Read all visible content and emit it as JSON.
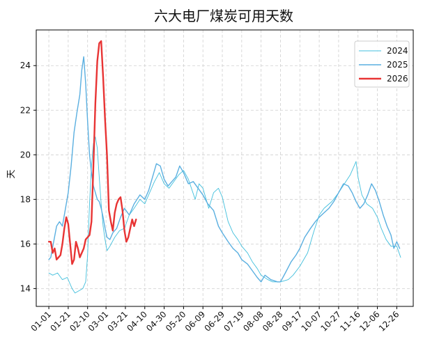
{
  "chart_data": {
    "type": "line",
    "title": "六大电厂煤炭可用天数",
    "xlabel": "",
    "ylabel": "天",
    "ylim": [
      13.2,
      25.6
    ],
    "xlim": [
      "2025-12-19",
      "2027-01-12"
    ],
    "y_ticks": [
      14,
      16,
      18,
      20,
      22,
      24
    ],
    "x_ticks": [
      "01-01",
      "01-21",
      "02-10",
      "03-01",
      "03-21",
      "04-10",
      "04-30",
      "05-20",
      "06-09",
      "06-29",
      "07-19",
      "08-08",
      "08-28",
      "09-17",
      "10-07",
      "10-27",
      "11-16",
      "12-06",
      "12-26"
    ],
    "grid": true,
    "legend_position": "top-right",
    "series": [
      {
        "name": "2024",
        "color": "#41bfdc",
        "line_width": 0.9,
        "points": [
          [
            "01-01",
            14.7
          ],
          [
            "01-05",
            14.6
          ],
          [
            "01-10",
            14.7
          ],
          [
            "01-15",
            14.4
          ],
          [
            "01-20",
            14.5
          ],
          [
            "01-25",
            14.0
          ],
          [
            "01-28",
            13.8
          ],
          [
            "02-01",
            13.9
          ],
          [
            "02-05",
            14.0
          ],
          [
            "02-08",
            14.3
          ],
          [
            "02-10",
            15.5
          ],
          [
            "02-12",
            17.8
          ],
          [
            "02-14",
            19.5
          ],
          [
            "02-16",
            20.5
          ],
          [
            "02-18",
            20.8
          ],
          [
            "02-20",
            20.3
          ],
          [
            "02-22",
            19.0
          ],
          [
            "02-24",
            17.8
          ],
          [
            "02-26",
            16.8
          ],
          [
            "02-28",
            16.2
          ],
          [
            "03-02",
            15.7
          ],
          [
            "03-05",
            15.9
          ],
          [
            "03-10",
            16.3
          ],
          [
            "03-15",
            16.6
          ],
          [
            "03-20",
            16.7
          ],
          [
            "03-25",
            17.3
          ],
          [
            "03-30",
            17.6
          ],
          [
            "04-05",
            18.0
          ],
          [
            "04-10",
            17.8
          ],
          [
            "04-15",
            18.3
          ],
          [
            "04-20",
            18.8
          ],
          [
            "04-25",
            19.2
          ],
          [
            "04-30",
            18.7
          ],
          [
            "05-05",
            18.5
          ],
          [
            "05-10",
            18.8
          ],
          [
            "05-15",
            19.1
          ],
          [
            "05-20",
            19.3
          ],
          [
            "05-25",
            18.9
          ],
          [
            "06-01",
            18.0
          ],
          [
            "06-05",
            18.7
          ],
          [
            "06-09",
            18.5
          ],
          [
            "06-15",
            17.6
          ],
          [
            "06-20",
            18.3
          ],
          [
            "06-25",
            18.5
          ],
          [
            "06-29",
            18.1
          ],
          [
            "07-05",
            17.0
          ],
          [
            "07-10",
            16.5
          ],
          [
            "07-15",
            16.2
          ],
          [
            "07-19",
            15.9
          ],
          [
            "07-25",
            15.6
          ],
          [
            "07-30",
            15.2
          ],
          [
            "08-04",
            14.9
          ],
          [
            "08-08",
            14.6
          ],
          [
            "08-15",
            14.4
          ],
          [
            "08-20",
            14.3
          ],
          [
            "08-28",
            14.3
          ],
          [
            "09-05",
            14.4
          ],
          [
            "09-10",
            14.6
          ],
          [
            "09-17",
            15.0
          ],
          [
            "09-25",
            15.6
          ],
          [
            "10-01",
            16.5
          ],
          [
            "10-07",
            17.3
          ],
          [
            "10-12",
            17.6
          ],
          [
            "10-20",
            17.9
          ],
          [
            "10-27",
            18.3
          ],
          [
            "11-02",
            18.7
          ],
          [
            "11-08",
            19.1
          ],
          [
            "11-12",
            19.5
          ],
          [
            "11-14",
            19.7
          ],
          [
            "11-16",
            19.0
          ],
          [
            "11-20",
            18.2
          ],
          [
            "11-25",
            17.8
          ],
          [
            "12-01",
            17.6
          ],
          [
            "12-06",
            17.2
          ],
          [
            "12-10",
            16.7
          ],
          [
            "12-15",
            16.2
          ],
          [
            "12-20",
            15.9
          ],
          [
            "12-26",
            15.9
          ],
          [
            "12-30",
            15.4
          ]
        ]
      },
      {
        "name": "2025",
        "color": "#5aafe0",
        "line_width": 1.4,
        "points": [
          [
            "01-01",
            15.3
          ],
          [
            "01-03",
            15.4
          ],
          [
            "01-06",
            16.1
          ],
          [
            "01-09",
            16.8
          ],
          [
            "01-12",
            17.0
          ],
          [
            "01-15",
            16.8
          ],
          [
            "01-17",
            17.3
          ],
          [
            "01-19",
            17.8
          ],
          [
            "01-21",
            18.3
          ],
          [
            "01-24",
            19.5
          ],
          [
            "01-27",
            21.0
          ],
          [
            "01-30",
            21.9
          ],
          [
            "02-02",
            22.7
          ],
          [
            "02-04",
            23.8
          ],
          [
            "02-06",
            24.4
          ],
          [
            "02-08",
            23.2
          ],
          [
            "02-10",
            21.5
          ],
          [
            "02-12",
            20.0
          ],
          [
            "02-14",
            19.2
          ],
          [
            "02-16",
            18.6
          ],
          [
            "02-18",
            18.3
          ],
          [
            "02-20",
            18.0
          ],
          [
            "02-22",
            17.9
          ],
          [
            "02-24",
            17.6
          ],
          [
            "02-26",
            17.2
          ],
          [
            "02-28",
            16.7
          ],
          [
            "03-02",
            16.3
          ],
          [
            "03-05",
            16.2
          ],
          [
            "03-08",
            16.5
          ],
          [
            "03-12",
            16.7
          ],
          [
            "03-16",
            17.2
          ],
          [
            "03-20",
            17.6
          ],
          [
            "03-25",
            17.3
          ],
          [
            "03-30",
            17.8
          ],
          [
            "04-05",
            18.2
          ],
          [
            "04-10",
            18.0
          ],
          [
            "04-14",
            18.4
          ],
          [
            "04-18",
            19.0
          ],
          [
            "04-22",
            19.6
          ],
          [
            "04-26",
            19.5
          ],
          [
            "04-30",
            18.9
          ],
          [
            "05-04",
            18.6
          ],
          [
            "05-08",
            18.8
          ],
          [
            "05-12",
            19.0
          ],
          [
            "05-16",
            19.5
          ],
          [
            "05-20",
            19.2
          ],
          [
            "05-25",
            18.7
          ],
          [
            "05-30",
            18.8
          ],
          [
            "06-04",
            18.5
          ],
          [
            "06-09",
            18.2
          ],
          [
            "06-14",
            17.8
          ],
          [
            "06-20",
            17.5
          ],
          [
            "06-25",
            16.8
          ],
          [
            "06-29",
            16.5
          ],
          [
            "07-05",
            16.1
          ],
          [
            "07-10",
            15.8
          ],
          [
            "07-15",
            15.6
          ],
          [
            "07-19",
            15.3
          ],
          [
            "07-25",
            15.1
          ],
          [
            "07-30",
            14.8
          ],
          [
            "08-04",
            14.5
          ],
          [
            "08-08",
            14.3
          ],
          [
            "08-12",
            14.6
          ],
          [
            "08-18",
            14.4
          ],
          [
            "08-25",
            14.3
          ],
          [
            "08-28",
            14.3
          ],
          [
            "09-02",
            14.7
          ],
          [
            "09-08",
            15.2
          ],
          [
            "09-13",
            15.5
          ],
          [
            "09-17",
            15.8
          ],
          [
            "09-22",
            16.3
          ],
          [
            "09-28",
            16.7
          ],
          [
            "10-03",
            17.0
          ],
          [
            "10-07",
            17.2
          ],
          [
            "10-12",
            17.4
          ],
          [
            "10-17",
            17.6
          ],
          [
            "10-22",
            17.9
          ],
          [
            "10-27",
            18.3
          ],
          [
            "11-01",
            18.7
          ],
          [
            "11-06",
            18.6
          ],
          [
            "11-10",
            18.3
          ],
          [
            "11-14",
            17.9
          ],
          [
            "11-18",
            17.6
          ],
          [
            "11-22",
            17.8
          ],
          [
            "11-26",
            18.2
          ],
          [
            "11-30",
            18.7
          ],
          [
            "12-04",
            18.4
          ],
          [
            "12-08",
            17.9
          ],
          [
            "12-12",
            17.3
          ],
          [
            "12-16",
            16.8
          ],
          [
            "12-20",
            16.4
          ],
          [
            "12-23",
            15.8
          ],
          [
            "12-26",
            16.1
          ],
          [
            "12-29",
            15.8
          ]
        ]
      },
      {
        "name": "2026",
        "color": "#e83434",
        "line_width": 2.4,
        "points": [
          [
            "01-01",
            16.1
          ],
          [
            "01-03",
            16.1
          ],
          [
            "01-05",
            15.6
          ],
          [
            "01-07",
            15.8
          ],
          [
            "01-09",
            15.3
          ],
          [
            "01-11",
            15.4
          ],
          [
            "01-13",
            15.5
          ],
          [
            "01-15",
            16.0
          ],
          [
            "01-17",
            16.7
          ],
          [
            "01-19",
            17.2
          ],
          [
            "01-21",
            16.9
          ],
          [
            "01-23",
            16.0
          ],
          [
            "01-25",
            15.1
          ],
          [
            "01-27",
            15.3
          ],
          [
            "01-29",
            16.1
          ],
          [
            "01-31",
            15.8
          ],
          [
            "02-02",
            15.4
          ],
          [
            "02-04",
            15.6
          ],
          [
            "02-06",
            15.8
          ],
          [
            "02-08",
            16.2
          ],
          [
            "02-10",
            16.3
          ],
          [
            "02-12",
            16.4
          ],
          [
            "02-14",
            17.0
          ],
          [
            "02-16",
            19.5
          ],
          [
            "02-18",
            22.3
          ],
          [
            "02-20",
            24.2
          ],
          [
            "02-22",
            25.0
          ],
          [
            "02-24",
            25.1
          ],
          [
            "02-26",
            23.5
          ],
          [
            "02-28",
            21.6
          ],
          [
            "03-02",
            20.0
          ],
          [
            "03-04",
            17.5
          ],
          [
            "03-06",
            17.0
          ],
          [
            "03-08",
            16.6
          ],
          [
            "03-10",
            17.4
          ],
          [
            "03-12",
            17.8
          ],
          [
            "03-14",
            18.0
          ],
          [
            "03-16",
            18.1
          ],
          [
            "03-18",
            17.5
          ],
          [
            "03-20",
            16.6
          ],
          [
            "03-22",
            16.1
          ],
          [
            "03-24",
            16.3
          ],
          [
            "03-26",
            16.7
          ],
          [
            "03-28",
            17.1
          ],
          [
            "03-30",
            16.8
          ],
          [
            "04-01",
            17.1
          ]
        ]
      }
    ]
  }
}
